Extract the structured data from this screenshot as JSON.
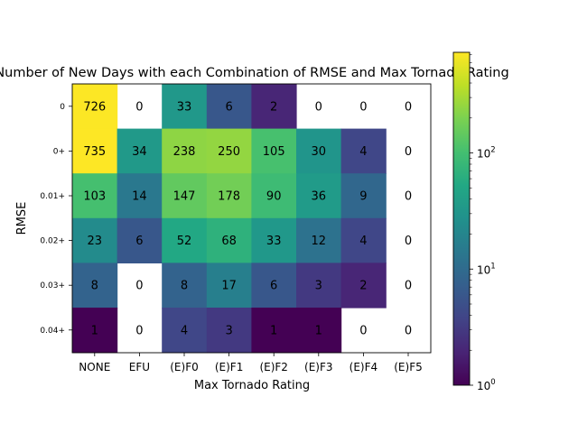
{
  "chart_data": {
    "type": "heatmap",
    "title": "Number of New Days with each Combination of RMSE and Max Tornado Rating",
    "xlabel": "Max Tornado Rating",
    "ylabel": "RMSE",
    "x": [
      "NONE",
      "EFU",
      "(E)F0",
      "(E)F1",
      "(E)F2",
      "(E)F3",
      "(E)F4",
      "(E)F5"
    ],
    "y": [
      "0",
      "0+",
      "0.01+",
      "0.02+",
      "0.03+",
      "0.04+"
    ],
    "values": [
      [
        726,
        0,
        33,
        6,
        2,
        0,
        0,
        0
      ],
      [
        735,
        34,
        238,
        250,
        105,
        30,
        4,
        0
      ],
      [
        103,
        14,
        147,
        178,
        90,
        36,
        9,
        0
      ],
      [
        23,
        6,
        52,
        68,
        33,
        12,
        4,
        0
      ],
      [
        8,
        0,
        8,
        17,
        6,
        3,
        2,
        0
      ],
      [
        1,
        0,
        4,
        3,
        1,
        1,
        0,
        0
      ]
    ],
    "colorbar": {
      "scale": "log",
      "range": [
        1,
        735
      ],
      "colormap": "viridis",
      "ticks": [
        "10^0",
        "10^1",
        "10^2"
      ]
    },
    "zero_cells": "blank (white)"
  }
}
